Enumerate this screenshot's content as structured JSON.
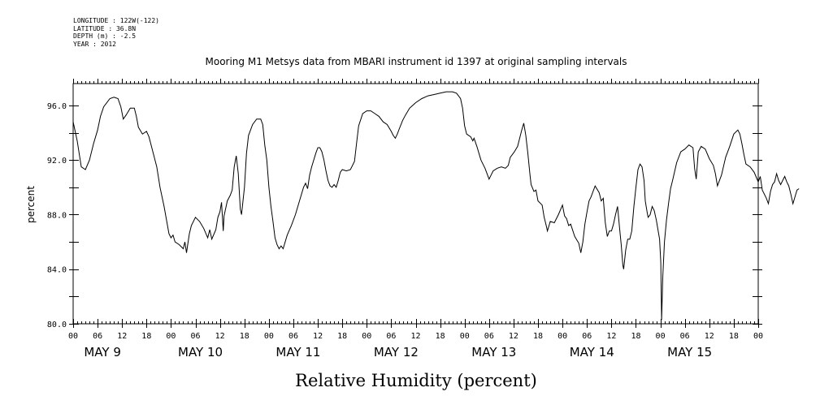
{
  "header": {
    "longitude": "LONGITUDE : 122W(-122)",
    "latitude": "LATITUDE : 36.8N",
    "depth": "DEPTH (m) : -2.5",
    "year": "YEAR : 2012"
  },
  "chart_data": {
    "type": "line",
    "title": "Mooring M1 Metsys data from MBARI instrument id 1397 at original sampling intervals",
    "xlabel": "Relative Humidity (percent)",
    "ylabel": "percent",
    "ylim": [
      80.0,
      97.6
    ],
    "yticks": [
      80.0,
      84.0,
      88.0,
      92.0,
      96.0
    ],
    "ytick_labels": [
      "80.0",
      "84.0",
      "88.0",
      "92.0",
      "96.0"
    ],
    "xlim_hours": [
      0,
      168
    ],
    "hour_tick_labels": [
      "00",
      "06",
      "12",
      "18",
      "00",
      "06",
      "12",
      "18",
      "00",
      "06",
      "12",
      "18",
      "00",
      "06",
      "12",
      "18",
      "00",
      "06",
      "12",
      "18",
      "00",
      "06",
      "12",
      "18",
      "00",
      "06",
      "12",
      "18",
      "00"
    ],
    "day_labels": [
      "MAY  9",
      "MAY 10",
      "MAY 11",
      "MAY 12",
      "MAY 13",
      "MAY 14",
      "MAY 15"
    ],
    "grid": false,
    "series": [
      {
        "points": [
          [
            0,
            94.8
          ],
          [
            1,
            93.4
          ],
          [
            2,
            91.5
          ],
          [
            3,
            91.3
          ],
          [
            4,
            92.0
          ],
          [
            5,
            93.2
          ],
          [
            6,
            94.2
          ],
          [
            6.7,
            95.2
          ],
          [
            7.5,
            95.9
          ],
          [
            9,
            96.5
          ],
          [
            10,
            96.6
          ],
          [
            11,
            96.5
          ],
          [
            11.7,
            95.9
          ],
          [
            12.3,
            95.0
          ],
          [
            13,
            95.3
          ],
          [
            14,
            95.8
          ],
          [
            15,
            95.8
          ],
          [
            15.5,
            95.2
          ],
          [
            16,
            94.4
          ],
          [
            17,
            93.9
          ],
          [
            17.5,
            94.0
          ],
          [
            18,
            94.1
          ],
          [
            18.6,
            93.7
          ],
          [
            19.3,
            92.9
          ],
          [
            20.5,
            91.5
          ],
          [
            21.3,
            90.0
          ],
          [
            22.3,
            88.6
          ],
          [
            23.5,
            86.6
          ],
          [
            24,
            86.3
          ],
          [
            24.5,
            86.5
          ],
          [
            25,
            86.0
          ],
          [
            26,
            85.8
          ],
          [
            27,
            85.5
          ],
          [
            27.4,
            86.0
          ],
          [
            27.8,
            85.2
          ],
          [
            28.5,
            86.6
          ],
          [
            29,
            87.2
          ],
          [
            30,
            87.8
          ],
          [
            31,
            87.5
          ],
          [
            32,
            87.0
          ],
          [
            33,
            86.3
          ],
          [
            33.5,
            86.9
          ],
          [
            34,
            86.2
          ],
          [
            35,
            86.9
          ],
          [
            35.5,
            87.8
          ],
          [
            36,
            88.2
          ],
          [
            36.4,
            88.9
          ],
          [
            36.8,
            86.8
          ],
          [
            37,
            87.9
          ],
          [
            37.8,
            89.0
          ],
          [
            38.5,
            89.4
          ],
          [
            39,
            89.8
          ],
          [
            39.5,
            91.5
          ],
          [
            40,
            92.3
          ],
          [
            40.5,
            91.0
          ],
          [
            41,
            88.4
          ],
          [
            41.3,
            88.0
          ],
          [
            42,
            90.0
          ],
          [
            42.5,
            92.5
          ],
          [
            43,
            93.8
          ],
          [
            44,
            94.6
          ],
          [
            45,
            95.0
          ],
          [
            46,
            95.0
          ],
          [
            46.5,
            94.6
          ],
          [
            47,
            93.1
          ],
          [
            47.5,
            92.0
          ],
          [
            48,
            90.0
          ],
          [
            48.5,
            88.6
          ],
          [
            49,
            87.5
          ],
          [
            49.5,
            86.3
          ],
          [
            50,
            85.8
          ],
          [
            50.5,
            85.5
          ],
          [
            51,
            85.7
          ],
          [
            51.5,
            85.5
          ],
          [
            52.5,
            86.5
          ],
          [
            53.5,
            87.2
          ],
          [
            54.5,
            88.0
          ],
          [
            55.5,
            89.0
          ],
          [
            56.5,
            90.0
          ],
          [
            57,
            90.3
          ],
          [
            57.5,
            89.9
          ],
          [
            58,
            90.9
          ],
          [
            58.5,
            91.5
          ],
          [
            59.5,
            92.5
          ],
          [
            60,
            92.9
          ],
          [
            60.5,
            92.9
          ],
          [
            61,
            92.6
          ],
          [
            61.5,
            92.0
          ],
          [
            62,
            91.2
          ],
          [
            62.5,
            90.5
          ],
          [
            63,
            90.1
          ],
          [
            63.5,
            90.0
          ],
          [
            64,
            90.2
          ],
          [
            64.5,
            90.0
          ],
          [
            65,
            90.5
          ],
          [
            65.5,
            91.1
          ],
          [
            66,
            91.3
          ],
          [
            67,
            91.2
          ],
          [
            68,
            91.3
          ],
          [
            69,
            91.9
          ],
          [
            69.5,
            93.2
          ],
          [
            70,
            94.5
          ],
          [
            71,
            95.4
          ],
          [
            72,
            95.6
          ],
          [
            73,
            95.6
          ],
          [
            74,
            95.4
          ],
          [
            75,
            95.2
          ],
          [
            76,
            94.8
          ],
          [
            77,
            94.6
          ],
          [
            78,
            94.1
          ],
          [
            78.5,
            93.8
          ],
          [
            79,
            93.6
          ],
          [
            79.5,
            93.9
          ],
          [
            80,
            94.3
          ],
          [
            80.8,
            94.9
          ],
          [
            81.5,
            95.3
          ],
          [
            82.5,
            95.8
          ],
          [
            84,
            96.2
          ],
          [
            85.5,
            96.5
          ],
          [
            87,
            96.7
          ],
          [
            88.5,
            96.8
          ],
          [
            90,
            96.9
          ],
          [
            91.5,
            97.0
          ],
          [
            93,
            97.0
          ],
          [
            94,
            96.9
          ],
          [
            95,
            96.5
          ],
          [
            95.5,
            95.8
          ],
          [
            96,
            94.5
          ],
          [
            96.5,
            93.9
          ],
          [
            97.5,
            93.7
          ],
          [
            98,
            93.4
          ],
          [
            98.3,
            93.6
          ],
          [
            99,
            93.0
          ],
          [
            99.5,
            92.5
          ],
          [
            100,
            92.0
          ],
          [
            101,
            91.4
          ],
          [
            102,
            90.6
          ],
          [
            102.5,
            90.9
          ],
          [
            103,
            91.2
          ],
          [
            104,
            91.4
          ],
          [
            105,
            91.5
          ],
          [
            106,
            91.4
          ],
          [
            106.7,
            91.6
          ],
          [
            107.2,
            92.2
          ],
          [
            108.2,
            92.6
          ],
          [
            109,
            93.0
          ],
          [
            110,
            94.2
          ],
          [
            110.5,
            94.7
          ],
          [
            111,
            93.8
          ],
          [
            111.5,
            92.5
          ],
          [
            112,
            91.0
          ],
          [
            112.3,
            90.2
          ],
          [
            113,
            89.7
          ],
          [
            113.5,
            89.8
          ],
          [
            114,
            89.0
          ],
          [
            115,
            88.7
          ],
          [
            115.5,
            87.8
          ],
          [
            116,
            87.2
          ],
          [
            116.3,
            86.8
          ],
          [
            117,
            87.5
          ],
          [
            118,
            87.4
          ],
          [
            119,
            88.0
          ],
          [
            120,
            88.7
          ],
          [
            120.5,
            87.9
          ],
          [
            121,
            87.7
          ],
          [
            121.5,
            87.2
          ],
          [
            122,
            87.3
          ],
          [
            123,
            86.4
          ],
          [
            124,
            85.9
          ],
          [
            124.5,
            85.2
          ],
          [
            125,
            86.0
          ],
          [
            125.5,
            87.3
          ],
          [
            126,
            88.2
          ],
          [
            126.5,
            89.0
          ],
          [
            127,
            89.3
          ],
          [
            128,
            90.1
          ],
          [
            129,
            89.6
          ],
          [
            129.5,
            89.0
          ],
          [
            130,
            89.2
          ],
          [
            130.5,
            87.4
          ],
          [
            131,
            86.4
          ],
          [
            131.5,
            86.8
          ],
          [
            132,
            86.8
          ],
          [
            132.5,
            87.3
          ],
          [
            133,
            88.0
          ],
          [
            133.5,
            88.6
          ],
          [
            134,
            87.0
          ],
          [
            134.4,
            85.8
          ],
          [
            134.8,
            84.3
          ],
          [
            135,
            84.0
          ],
          [
            135.5,
            85.4
          ],
          [
            136,
            86.2
          ],
          [
            136.5,
            86.2
          ],
          [
            137,
            86.8
          ],
          [
            137.5,
            88.6
          ],
          [
            138,
            90.0
          ],
          [
            138.5,
            91.3
          ],
          [
            139,
            91.7
          ],
          [
            139.5,
            91.5
          ],
          [
            140,
            90.5
          ],
          [
            140.3,
            89.0
          ],
          [
            140.8,
            88.1
          ],
          [
            141,
            87.8
          ],
          [
            141.5,
            88.0
          ],
          [
            142,
            88.6
          ],
          [
            142.5,
            88.3
          ],
          [
            143,
            87.6
          ],
          [
            143.4,
            86.9
          ],
          [
            143.8,
            86.2
          ],
          [
            144.1,
            84.5
          ],
          [
            144.3,
            80.3
          ],
          [
            144.6,
            83.5
          ],
          [
            145,
            86.0
          ],
          [
            145.5,
            87.6
          ],
          [
            146,
            88.8
          ],
          [
            146.5,
            89.9
          ],
          [
            147,
            90.5
          ],
          [
            148,
            91.8
          ],
          [
            149,
            92.6
          ],
          [
            150,
            92.8
          ],
          [
            151,
            93.1
          ],
          [
            152,
            92.9
          ],
          [
            152.4,
            91.4
          ],
          [
            152.8,
            90.6
          ],
          [
            153.3,
            92.6
          ],
          [
            154,
            93.0
          ],
          [
            155,
            92.8
          ],
          [
            156,
            92.1
          ],
          [
            157,
            91.6
          ],
          [
            157.5,
            91.0
          ],
          [
            158,
            90.1
          ],
          [
            159,
            90.9
          ],
          [
            160,
            92.2
          ],
          [
            161,
            93.0
          ],
          [
            162,
            93.9
          ],
          [
            163,
            94.2
          ],
          [
            163.5,
            93.9
          ],
          [
            164,
            93.2
          ],
          [
            164.5,
            92.4
          ],
          [
            165,
            91.7
          ],
          [
            166,
            91.5
          ],
          [
            167,
            91.1
          ],
          [
            168,
            90.4
          ],
          [
            168.5,
            90.8
          ],
          [
            169,
            89.8
          ],
          [
            170,
            89.2
          ],
          [
            170.5,
            88.8
          ],
          [
            171,
            89.7
          ],
          [
            171.5,
            90.2
          ],
          [
            172,
            90.4
          ],
          [
            172.5,
            91.0
          ],
          [
            173,
            90.5
          ],
          [
            173.5,
            90.2
          ],
          [
            174,
            90.5
          ],
          [
            174.5,
            90.8
          ],
          [
            175,
            90.4
          ],
          [
            175.5,
            90.1
          ],
          [
            176,
            89.5
          ],
          [
            176.5,
            88.8
          ],
          [
            177,
            89.3
          ],
          [
            177.5,
            89.8
          ],
          [
            178,
            89.9
          ]
        ]
      }
    ]
  }
}
